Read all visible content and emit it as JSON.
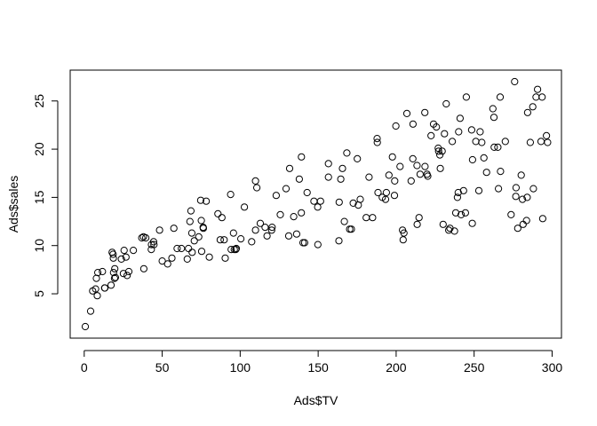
{
  "chart_data": {
    "type": "scatter",
    "title": "",
    "xlabel": "Ads$TV",
    "ylabel": "Ads$sales",
    "xlim": [
      -9,
      306
    ],
    "ylim": [
      0.4,
      28.2
    ],
    "xticks": [
      0,
      50,
      100,
      150,
      200,
      250,
      300
    ],
    "yticks": [
      5,
      10,
      15,
      20,
      25
    ],
    "grid": false,
    "legend": "none",
    "marker": "open-circle",
    "color": "#000000",
    "points": [
      [
        0.7,
        1.6
      ],
      [
        4.1,
        3.2
      ],
      [
        5.4,
        5.3
      ],
      [
        7.3,
        5.5
      ],
      [
        7.8,
        6.6
      ],
      [
        8.4,
        4.8
      ],
      [
        8.7,
        7.2
      ],
      [
        11.7,
        7.3
      ],
      [
        13.1,
        5.6
      ],
      [
        13.2,
        5.6
      ],
      [
        17.2,
        5.9
      ],
      [
        17.9,
        9.3
      ],
      [
        18.7,
        8.7
      ],
      [
        18.8,
        7.2
      ],
      [
        19.4,
        6.6
      ],
      [
        19.6,
        7.6
      ],
      [
        18.5,
        9.1
      ],
      [
        20.0,
        6.7
      ],
      [
        23.8,
        8.6
      ],
      [
        25.1,
        7.1
      ],
      [
        25.6,
        9.5
      ],
      [
        26.8,
        8.8
      ],
      [
        27.5,
        6.9
      ],
      [
        28.6,
        7.3
      ],
      [
        31.5,
        9.5
      ],
      [
        36.9,
        10.8
      ],
      [
        38.2,
        7.6
      ],
      [
        38.0,
        10.9
      ],
      [
        39.5,
        10.8
      ],
      [
        43.0,
        9.6
      ],
      [
        43.1,
        10.1
      ],
      [
        44.5,
        10.4
      ],
      [
        44.7,
        10.1
      ],
      [
        48.3,
        11.6
      ],
      [
        50.0,
        8.4
      ],
      [
        53.5,
        8.1
      ],
      [
        56.2,
        8.7
      ],
      [
        57.5,
        11.8
      ],
      [
        59.6,
        9.7
      ],
      [
        62.3,
        9.7
      ],
      [
        66.1,
        8.6
      ],
      [
        66.9,
        9.7
      ],
      [
        67.8,
        12.5
      ],
      [
        68.4,
        13.6
      ],
      [
        69.0,
        11.3
      ],
      [
        69.2,
        9.3
      ],
      [
        70.6,
        10.5
      ],
      [
        73.4,
        10.9
      ],
      [
        74.7,
        14.7
      ],
      [
        75.1,
        12.6
      ],
      [
        75.3,
        9.4
      ],
      [
        76.3,
        11.9
      ],
      [
        76.4,
        11.8
      ],
      [
        78.2,
        14.6
      ],
      [
        80.2,
        8.8
      ],
      [
        85.7,
        13.3
      ],
      [
        87.2,
        10.6
      ],
      [
        88.3,
        12.9
      ],
      [
        89.7,
        10.6
      ],
      [
        90.4,
        8.7
      ],
      [
        93.9,
        15.3
      ],
      [
        94.2,
        9.6
      ],
      [
        95.7,
        11.3
      ],
      [
        96.2,
        9.6
      ],
      [
        97.2,
        9.6
      ],
      [
        97.5,
        9.7
      ],
      [
        100.4,
        10.7
      ],
      [
        102.7,
        14.0
      ],
      [
        107.4,
        10.4
      ],
      [
        109.8,
        11.6
      ],
      [
        110.7,
        16.0
      ],
      [
        109.8,
        16.7
      ],
      [
        112.9,
        12.3
      ],
      [
        116.0,
        11.9
      ],
      [
        117.2,
        11.0
      ],
      [
        120.2,
        11.6
      ],
      [
        120.5,
        11.9
      ],
      [
        123.1,
        15.2
      ],
      [
        125.7,
        13.2
      ],
      [
        129.4,
        15.9
      ],
      [
        131.1,
        11.0
      ],
      [
        131.7,
        18.0
      ],
      [
        134.3,
        13.0
      ],
      [
        136.2,
        11.2
      ],
      [
        137.9,
        16.9
      ],
      [
        139.2,
        13.4
      ],
      [
        139.3,
        19.2
      ],
      [
        140.3,
        10.3
      ],
      [
        141.3,
        10.3
      ],
      [
        142.9,
        15.5
      ],
      [
        147.3,
        14.6
      ],
      [
        149.7,
        14.0
      ],
      [
        151.5,
        14.6
      ],
      [
        149.8,
        10.1
      ],
      [
        156.6,
        18.5
      ],
      [
        156.6,
        17.1
      ],
      [
        163.3,
        10.5
      ],
      [
        163.5,
        14.5
      ],
      [
        164.5,
        16.9
      ],
      [
        165.6,
        18.0
      ],
      [
        166.8,
        12.5
      ],
      [
        168.4,
        19.6
      ],
      [
        170.2,
        11.7
      ],
      [
        171.3,
        11.7
      ],
      [
        172.5,
        14.4
      ],
      [
        175.1,
        19.0
      ],
      [
        175.7,
        14.2
      ],
      [
        177.0,
        14.8
      ],
      [
        180.8,
        12.9
      ],
      [
        182.6,
        17.1
      ],
      [
        184.9,
        12.9
      ],
      [
        187.8,
        21.1
      ],
      [
        187.9,
        20.7
      ],
      [
        188.4,
        15.5
      ],
      [
        191.1,
        15.0
      ],
      [
        193.2,
        14.8
      ],
      [
        193.7,
        15.5
      ],
      [
        195.4,
        17.3
      ],
      [
        197.6,
        19.2
      ],
      [
        198.9,
        15.2
      ],
      [
        199.1,
        16.7
      ],
      [
        199.8,
        22.4
      ],
      [
        202.5,
        18.2
      ],
      [
        204.1,
        11.6
      ],
      [
        204.5,
        10.6
      ],
      [
        205.0,
        11.3
      ],
      [
        206.9,
        23.7
      ],
      [
        209.6,
        16.7
      ],
      [
        210.7,
        19.0
      ],
      [
        210.8,
        22.6
      ],
      [
        213.4,
        18.3
      ],
      [
        213.5,
        12.2
      ],
      [
        214.7,
        12.9
      ],
      [
        215.4,
        17.4
      ],
      [
        218.4,
        23.8
      ],
      [
        218.5,
        18.2
      ],
      [
        219.8,
        17.4
      ],
      [
        220.3,
        17.2
      ],
      [
        222.4,
        21.4
      ],
      [
        224.0,
        22.6
      ],
      [
        225.8,
        22.3
      ],
      [
        227.2,
        19.8
      ],
      [
        228.0,
        19.4
      ],
      [
        228.3,
        18.0
      ],
      [
        229.5,
        19.8
      ],
      [
        230.1,
        12.2
      ],
      [
        232.1,
        24.7
      ],
      [
        233.7,
        11.6
      ],
      [
        234.5,
        11.8
      ],
      [
        237.4,
        11.5
      ],
      [
        238.2,
        13.4
      ],
      [
        239.3,
        15.0
      ],
      [
        239.8,
        15.5
      ],
      [
        240.1,
        21.8
      ],
      [
        241.7,
        13.2
      ],
      [
        243.2,
        15.7
      ],
      [
        244.4,
        13.4
      ],
      [
        248.4,
        22.0
      ],
      [
        248.8,
        12.3
      ],
      [
        251.1,
        20.8
      ],
      [
        253.8,
        21.8
      ],
      [
        254.9,
        20.7
      ],
      [
        256.3,
        19.1
      ],
      [
        262.7,
        23.3
      ],
      [
        262.9,
        20.2
      ],
      [
        265.2,
        20.2
      ],
      [
        265.6,
        15.9
      ],
      [
        266.7,
        25.4
      ],
      [
        266.9,
        17.7
      ],
      [
        273.7,
        13.2
      ],
      [
        276.7,
        15.1
      ],
      [
        276.9,
        16.0
      ],
      [
        280.2,
        17.3
      ],
      [
        281.4,
        12.2
      ],
      [
        283.6,
        12.6
      ],
      [
        284.3,
        23.8
      ],
      [
        286.0,
        20.7
      ],
      [
        287.6,
        24.4
      ],
      [
        289.7,
        25.4
      ],
      [
        290.7,
        26.2
      ],
      [
        292.9,
        20.8
      ],
      [
        293.6,
        25.4
      ],
      [
        296.4,
        21.4
      ],
      [
        297.1,
        20.7
      ],
      [
        294.0,
        12.8
      ],
      [
        288.0,
        15.9
      ],
      [
        284.0,
        15.0
      ],
      [
        281.0,
        14.8
      ],
      [
        278.0,
        11.8
      ],
      [
        276.0,
        27.0
      ],
      [
        270.0,
        20.8
      ],
      [
        262.0,
        24.2
      ],
      [
        258.0,
        17.6
      ],
      [
        253.0,
        15.7
      ],
      [
        249.0,
        18.9
      ],
      [
        245.0,
        25.4
      ],
      [
        241.0,
        23.2
      ],
      [
        236.0,
        20.8
      ],
      [
        231.0,
        21.6
      ],
      [
        227.0,
        20.1
      ]
    ]
  }
}
